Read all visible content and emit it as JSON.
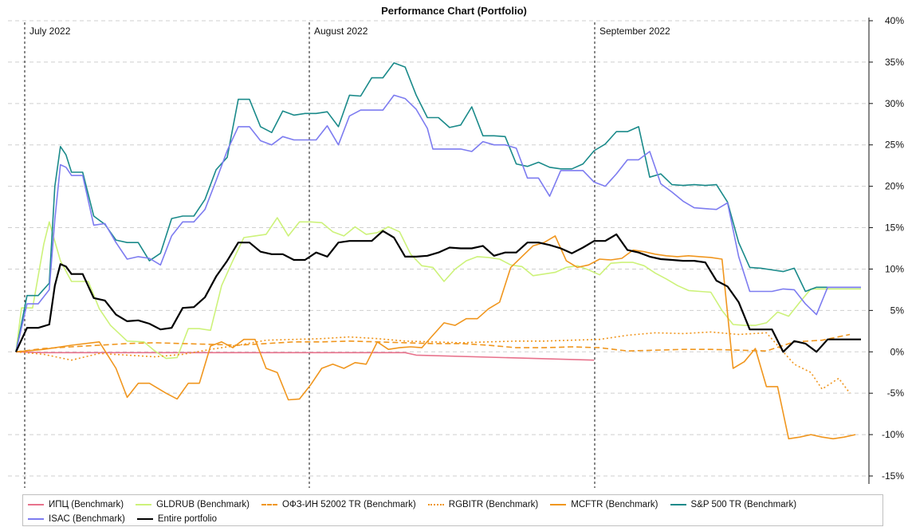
{
  "chart_data": {
    "type": "line",
    "title": "Performance Chart (Portfolio)",
    "month_labels": [
      "July 2022",
      "August 2022",
      "September 2022"
    ],
    "y_ticks": [
      40,
      35,
      30,
      25,
      20,
      15,
      10,
      5,
      0,
      -5,
      -10,
      -15
    ],
    "y_tick_labels": [
      "40%",
      "35%",
      "30%",
      "25%",
      "20%",
      "15%",
      "10%",
      "5%",
      "0%",
      "-5%",
      "-10%",
      "-15%"
    ],
    "ylim": [
      -15,
      40
    ],
    "y_axis_position": "right",
    "grid": "horizontal dashed",
    "legend_position": "bottom",
    "series": [
      {
        "name": "ИПЦ (Benchmark)",
        "color": "#e8728c",
        "style": "solid",
        "x": [
          0,
          5,
          35,
          70,
          72,
          104
        ],
        "y": [
          0,
          -0.1,
          -0.1,
          -0.1,
          -0.4,
          -1.0
        ]
      },
      {
        "name": "GLDRUB (Benchmark)",
        "color": "#cdf27a",
        "style": "solid",
        "x": [
          0,
          1,
          3,
          5,
          6,
          8,
          10,
          13,
          15,
          17,
          20,
          23,
          25,
          27,
          29,
          31,
          33,
          35,
          37,
          39,
          41,
          43,
          45,
          47,
          49,
          51,
          53,
          55,
          57,
          59,
          61,
          63,
          65,
          67,
          69,
          71,
          73,
          75,
          77,
          79,
          81,
          83,
          85,
          87,
          89,
          91,
          93,
          95,
          97,
          99,
          101,
          103,
          105,
          107,
          109,
          111,
          113,
          115,
          117,
          119,
          121,
          123,
          125,
          127,
          129,
          131,
          133,
          135,
          137,
          139,
          141,
          143,
          145,
          147,
          149,
          150,
          151,
          152
        ],
        "y": [
          0,
          5.3,
          5.3,
          13,
          15.7,
          11,
          8.5,
          8.5,
          5.2,
          3.2,
          1.3,
          1.2,
          0.1,
          -0.8,
          -0.7,
          2.8,
          2.8,
          2.6,
          8,
          11,
          13.8,
          14,
          14.2,
          16.2,
          14,
          15.7,
          15.7,
          15.6,
          14.5,
          14,
          15.1,
          14.2,
          14.4,
          15.1,
          14.5,
          11.8,
          10.4,
          10.2,
          8.5,
          10,
          11,
          11.5,
          11.4,
          11.2,
          10.5,
          10.3,
          9.2,
          9.4,
          9.6,
          10.2,
          10.4,
          9.9,
          9.3,
          10.7,
          10.8,
          10.8,
          10.4,
          9.5,
          8.8,
          8,
          7.4,
          7.3,
          7.2,
          5,
          3.3,
          3.2,
          3.2,
          3.5,
          4.8,
          4.3,
          6,
          7.6,
          7.6,
          7.6,
          7.6,
          7.6,
          7.6,
          7.6
        ]
      },
      {
        "name": "ОФЗ-ИН 52002 TR (Benchmark)",
        "color": "#f0961e",
        "style": "dashed",
        "x": [
          0,
          5,
          10,
          15,
          20,
          25,
          30,
          35,
          40,
          45,
          50,
          55,
          60,
          65,
          70,
          75,
          80,
          85,
          90,
          95,
          100,
          105,
          110,
          115,
          120,
          125,
          130,
          135,
          140,
          145,
          150
        ],
        "y": [
          0,
          0.4,
          0.6,
          0.8,
          1,
          1.1,
          1,
          0.9,
          0.8,
          1.0,
          1.2,
          1.2,
          1.3,
          1.2,
          1.1,
          1.0,
          1.0,
          0.8,
          0.5,
          0.5,
          0.6,
          0.5,
          0.1,
          0.2,
          0.3,
          0.3,
          0.2,
          0.1,
          1.2,
          1.4,
          2.1
        ]
      },
      {
        "name": "RGBITR (Benchmark)",
        "color": "#f0961e",
        "style": "dotted",
        "x": [
          0,
          5,
          10,
          15,
          20,
          25,
          30,
          35,
          40,
          45,
          50,
          55,
          60,
          65,
          70,
          75,
          80,
          85,
          90,
          95,
          100,
          105,
          110,
          115,
          120,
          125,
          130,
          135,
          140,
          143,
          145,
          148,
          150
        ],
        "y": [
          0,
          -0.3,
          -1,
          -0.2,
          -0.4,
          -0.6,
          -0.3,
          0.3,
          0.8,
          1.4,
          1.5,
          1.6,
          1.8,
          1.6,
          1.3,
          1.2,
          1.1,
          1.2,
          1.3,
          1.3,
          1.4,
          1.5,
          2.0,
          2.3,
          2.2,
          2.4,
          2.1,
          2.3,
          -1.5,
          -2.5,
          -4.5,
          -3.2,
          -5.0
        ]
      },
      {
        "name": "MCFTR (Benchmark)",
        "color": "#f0961e",
        "style": "solid",
        "x": [
          0,
          5,
          10,
          15,
          18,
          20,
          22,
          24,
          27,
          29,
          31,
          33,
          35,
          37,
          39,
          41,
          43,
          45,
          47,
          49,
          51,
          53,
          55,
          57,
          59,
          61,
          63,
          65,
          67,
          69,
          71,
          73,
          75,
          77,
          79,
          81,
          83,
          85,
          87,
          89,
          91,
          93,
          95,
          97,
          99,
          101,
          103,
          105,
          107,
          109,
          111,
          113,
          115,
          117,
          119,
          121,
          123,
          125,
          127,
          129,
          131,
          133,
          135,
          137,
          139,
          141,
          143,
          145,
          147,
          149,
          151
        ],
        "y": [
          0,
          0.3,
          0.8,
          1.2,
          -2,
          -5.5,
          -3.8,
          -3.8,
          -5,
          -5.7,
          -3.8,
          -3.8,
          0.7,
          1.2,
          0.5,
          1.5,
          1.5,
          -2,
          -2.5,
          -5.8,
          -5.7,
          -4,
          -2,
          -1.5,
          -2,
          -1.3,
          -1.5,
          1.2,
          0.3,
          0.5,
          0.6,
          0.5,
          2,
          3.5,
          3.2,
          4,
          4,
          5.2,
          6,
          10.2,
          11.5,
          12.8,
          13.2,
          14,
          11,
          10.2,
          10.5,
          11.2,
          11.1,
          11.3,
          12.3,
          12.1,
          11.8,
          11.6,
          11.5,
          11.6,
          11.5,
          11.4,
          11.2,
          -2,
          -1.2,
          0.4,
          -4.2,
          -4.2,
          -10.5,
          -10.3,
          -10,
          -10.3,
          -10.5,
          -10.3,
          -10
        ]
      },
      {
        "name": "S&P 500 TR (Benchmark)",
        "color": "#1a8a8a",
        "style": "solid",
        "x": [
          0,
          2,
          4,
          6,
          7,
          8,
          9,
          10,
          12,
          14,
          16,
          18,
          20,
          22,
          24,
          26,
          28,
          30,
          32,
          34,
          36,
          38,
          40,
          42,
          44,
          46,
          48,
          50,
          52,
          54,
          56,
          58,
          60,
          62,
          64,
          66,
          68,
          70,
          72,
          74,
          75,
          76,
          78,
          80,
          82,
          84,
          86,
          88,
          90,
          92,
          94,
          96,
          98,
          100,
          102,
          104,
          106,
          108,
          110,
          112,
          114,
          116,
          118,
          120,
          122,
          124,
          126,
          128,
          130,
          132,
          134,
          136,
          138,
          140,
          142,
          144,
          146,
          148,
          150,
          152
        ],
        "y": [
          0,
          6.8,
          6.8,
          8.3,
          20,
          24.8,
          23.8,
          21.7,
          21.7,
          16.4,
          15.4,
          13.5,
          13.2,
          13.2,
          11,
          11.9,
          16.1,
          16.4,
          16.4,
          18.4,
          22,
          23.5,
          30.5,
          30.5,
          27.2,
          26.5,
          29.1,
          28.6,
          28.8,
          28.8,
          29,
          27.2,
          31,
          30.9,
          33.1,
          33.1,
          34.9,
          34.4,
          31,
          28.3,
          28.3,
          28.3,
          27.1,
          27.4,
          29.6,
          26.1,
          26.1,
          26,
          22.7,
          22.4,
          22.9,
          22.3,
          22.1,
          22.1,
          22.7,
          24.3,
          25.1,
          26.6,
          26.6,
          27.2,
          21.1,
          21.5,
          20.2,
          20.1,
          20.2,
          20.1,
          20.2,
          18.1,
          13.2,
          10.2,
          10.1,
          9.9,
          9.7,
          10.1,
          7.3,
          7.8,
          7.8,
          7.8,
          7.8,
          7.8
        ]
      },
      {
        "name": "ISAC (Benchmark)",
        "color": "#7d7cf0",
        "style": "solid",
        "x": [
          0,
          2,
          4,
          6,
          7,
          8,
          9,
          10,
          12,
          14,
          16,
          18,
          20,
          22,
          24,
          26,
          28,
          30,
          32,
          34,
          36,
          38,
          40,
          42,
          44,
          46,
          48,
          50,
          52,
          54,
          56,
          58,
          60,
          62,
          64,
          66,
          68,
          70,
          72,
          74,
          75,
          76,
          78,
          80,
          82,
          84,
          86,
          88,
          90,
          92,
          94,
          96,
          98,
          100,
          102,
          104,
          106,
          108,
          110,
          112,
          114,
          116,
          118,
          120,
          122,
          124,
          126,
          128,
          130,
          132,
          134,
          136,
          138,
          140,
          142,
          144,
          146,
          148,
          150,
          152
        ],
        "y": [
          0,
          5.8,
          5.8,
          7.5,
          16,
          22.6,
          22.3,
          21.3,
          21.3,
          15.3,
          15.5,
          13.2,
          11.2,
          11.5,
          11.3,
          10.5,
          14,
          15.7,
          15.7,
          17.2,
          20.7,
          24.3,
          27.2,
          27.2,
          25.5,
          25,
          26,
          25.6,
          25.6,
          25.6,
          27.3,
          25,
          28.5,
          29.2,
          29.2,
          29.2,
          31,
          30.6,
          29.3,
          27,
          24.5,
          24.5,
          24.5,
          24.5,
          24.2,
          25.4,
          25,
          25,
          24.6,
          21,
          21,
          18.8,
          21.9,
          21.9,
          21.9,
          20.5,
          20,
          21.5,
          23.2,
          23.2,
          24.2,
          20.3,
          19.3,
          18.2,
          17.4,
          17.3,
          17.2,
          18,
          11.5,
          7.3,
          7.3,
          7.3,
          7.6,
          7.5,
          5.8,
          4.5,
          7.8,
          7.8,
          7.8,
          7.8
        ]
      },
      {
        "name": "Entire portfolio",
        "color": "#000000",
        "style": "solid",
        "x": [
          0,
          2,
          4,
          6,
          7,
          8,
          9,
          10,
          12,
          14,
          16,
          18,
          20,
          22,
          24,
          26,
          28,
          30,
          32,
          34,
          36,
          38,
          40,
          42,
          44,
          46,
          48,
          50,
          52,
          54,
          56,
          58,
          60,
          62,
          64,
          66,
          68,
          70,
          72,
          74,
          76,
          78,
          80,
          82,
          84,
          86,
          88,
          90,
          92,
          94,
          96,
          98,
          100,
          102,
          104,
          106,
          108,
          110,
          112,
          114,
          116,
          118,
          120,
          122,
          124,
          126,
          128,
          130,
          132,
          134,
          136,
          138,
          140,
          142,
          144,
          146,
          148,
          150,
          152
        ],
        "y": [
          0,
          2.9,
          2.9,
          3.3,
          8,
          10.6,
          10.3,
          9.4,
          9.4,
          6.5,
          6.2,
          4.5,
          3.7,
          3.8,
          3.4,
          2.7,
          2.9,
          5.3,
          5.4,
          6.6,
          9.1,
          11,
          13.2,
          13.2,
          12.1,
          11.8,
          11.8,
          11.1,
          11.1,
          12,
          11.5,
          13.2,
          13.4,
          13.4,
          13.4,
          14.6,
          13.8,
          11.5,
          11.5,
          11.6,
          12,
          12.6,
          12.5,
          12.5,
          12.8,
          11.6,
          12,
          12,
          13.2,
          13.2,
          12.9,
          12.5,
          11.9,
          12.6,
          13.4,
          13.4,
          14.2,
          12.3,
          12,
          11.5,
          11.2,
          11.1,
          11,
          11,
          10.8,
          8.6,
          7.9,
          6,
          2.7,
          2.7,
          2.7,
          0,
          1.3,
          1,
          0,
          1.5,
          1.5,
          1.5,
          1.5
        ]
      }
    ]
  }
}
